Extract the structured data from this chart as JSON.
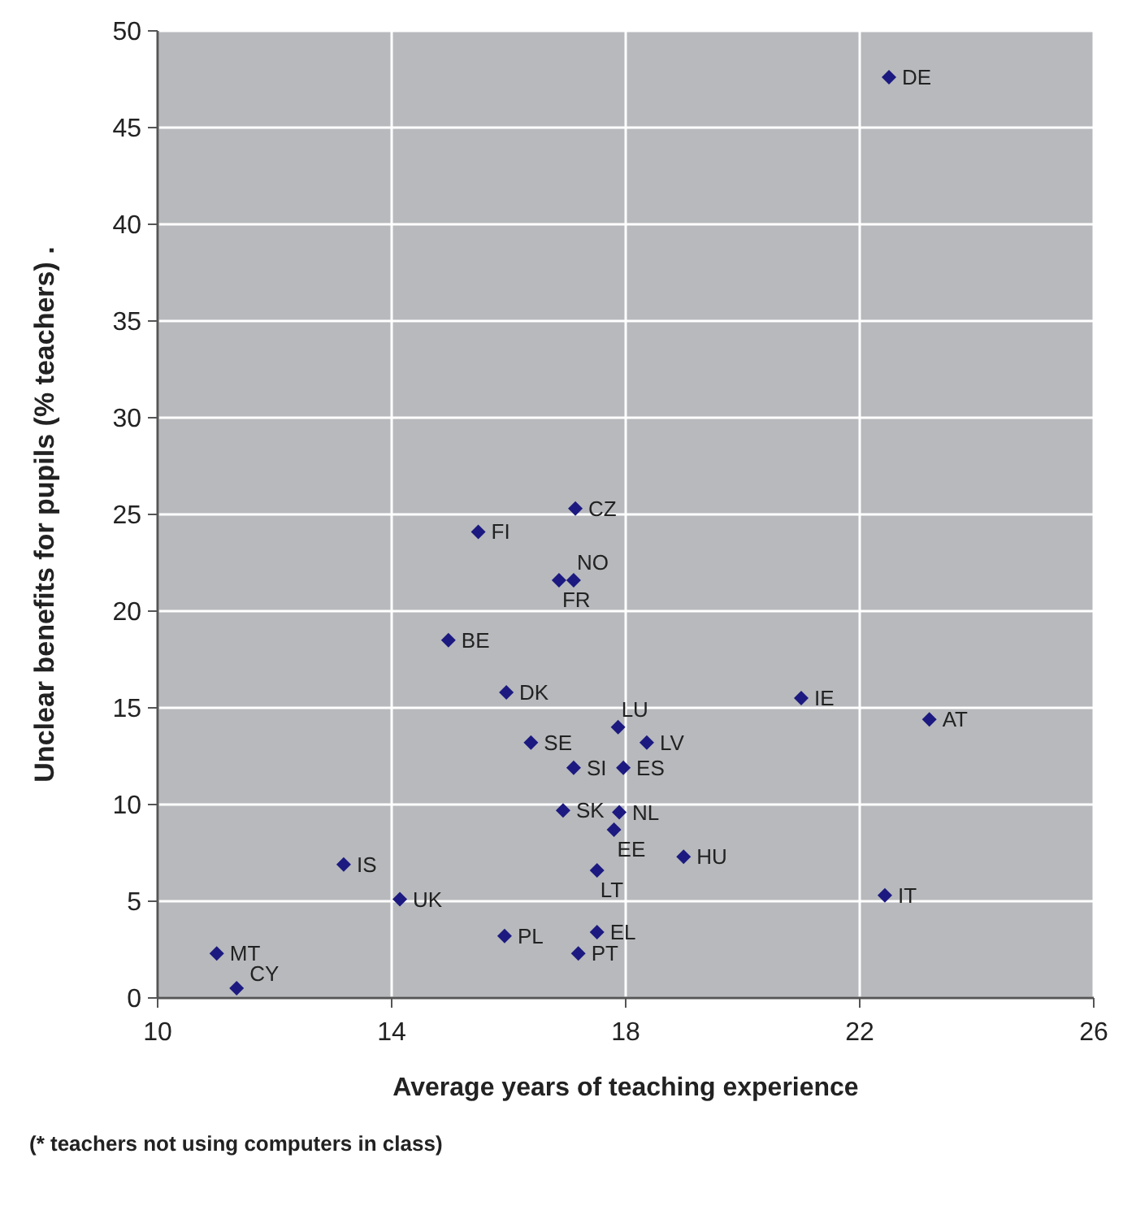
{
  "chart_data": {
    "type": "scatter",
    "xlabel": "Average years of teaching experience",
    "ylabel": "Unclear benefits for pupils (% teachers)  .",
    "x": [
      22.5,
      17.14,
      15.48,
      16.86,
      17.11,
      14.97,
      15.96,
      21.0,
      23.19,
      16.38,
      17.87,
      18.36,
      17.11,
      17.96,
      16.93,
      17.89,
      17.8,
      18.99,
      13.18,
      17.51,
      14.14,
      22.43,
      15.93,
      17.51,
      17.19,
      11.01,
      11.35
    ],
    "series": [
      {
        "color": "#1c1a80",
        "values": [
          47.6,
          25.3,
          24.1,
          21.6,
          21.6,
          18.5,
          15.8,
          15.5,
          14.4,
          13.2,
          14.0,
          13.2,
          11.9,
          11.9,
          9.7,
          9.6,
          8.7,
          7.3,
          6.9,
          6.6,
          5.1,
          5.3,
          3.2,
          3.4,
          2.3,
          2.3,
          0.5
        ]
      }
    ],
    "xlim": [
      10,
      26
    ],
    "xticks": [
      10,
      14,
      18,
      22,
      26
    ],
    "ylim": [
      0,
      50
    ],
    "yticks": [
      0,
      5,
      10,
      15,
      20,
      25,
      30,
      35,
      40,
      45,
      50
    ],
    "grid": true,
    "marker": "diamond",
    "annotations": [
      {
        "text": "DE",
        "x": 22.5,
        "y": 47.6
      },
      {
        "text": "CZ",
        "x": 17.14,
        "y": 25.3
      },
      {
        "text": "FI",
        "x": 15.48,
        "y": 24.1
      },
      {
        "text": "FR",
        "x": 16.86,
        "y": 21.6
      },
      {
        "text": "NO",
        "x": 17.11,
        "y": 21.6
      },
      {
        "text": "BE",
        "x": 14.97,
        "y": 18.5
      },
      {
        "text": "DK",
        "x": 15.96,
        "y": 15.8
      },
      {
        "text": "IE",
        "x": 21.0,
        "y": 15.5
      },
      {
        "text": "AT",
        "x": 23.19,
        "y": 14.4
      },
      {
        "text": "SE",
        "x": 16.38,
        "y": 13.2
      },
      {
        "text": "LU",
        "x": 17.87,
        "y": 14.0
      },
      {
        "text": "LV",
        "x": 18.36,
        "y": 13.2
      },
      {
        "text": "SI",
        "x": 17.11,
        "y": 11.9
      },
      {
        "text": "ES",
        "x": 17.96,
        "y": 11.9
      },
      {
        "text": "SK",
        "x": 16.93,
        "y": 9.7
      },
      {
        "text": "NL",
        "x": 17.89,
        "y": 9.6
      },
      {
        "text": "EE",
        "x": 17.8,
        "y": 8.7
      },
      {
        "text": "HU",
        "x": 18.99,
        "y": 7.3
      },
      {
        "text": "IS",
        "x": 13.18,
        "y": 6.9
      },
      {
        "text": "LT",
        "x": 17.51,
        "y": 6.6
      },
      {
        "text": "UK",
        "x": 14.14,
        "y": 5.1
      },
      {
        "text": "IT",
        "x": 22.43,
        "y": 5.3
      },
      {
        "text": "PL",
        "x": 15.93,
        "y": 3.2
      },
      {
        "text": "EL",
        "x": 17.51,
        "y": 3.4
      },
      {
        "text": "PT",
        "x": 17.19,
        "y": 2.3
      },
      {
        "text": "MT",
        "x": 11.01,
        "y": 2.3
      },
      {
        "text": "CY",
        "x": 11.35,
        "y": 0.5
      },
      "(* teachers not using computers in class)"
    ]
  }
}
